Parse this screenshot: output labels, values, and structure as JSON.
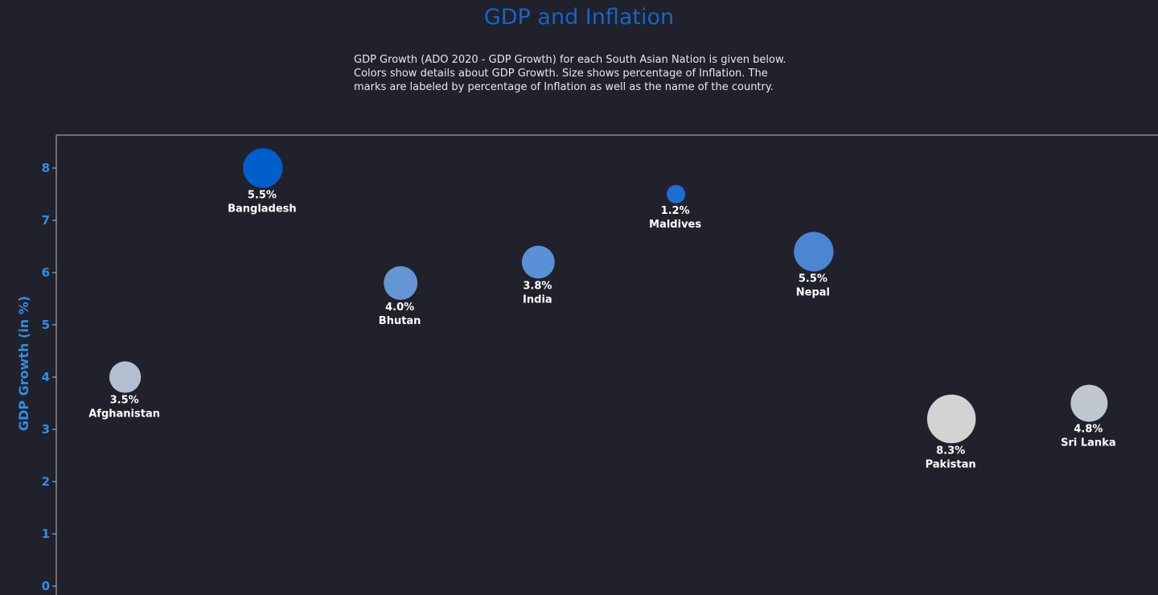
{
  "title": "GDP and Inflation",
  "description": [
    "GDP Growth (ADO 2020 - GDP Growth) for each South Asian Nation is given below.",
    "Colors show details about GDP Growth.  Size shows percentage of Inflation.  The",
    "marks are labeled by percentage of Inflation as well as the name of the country."
  ],
  "chart_data": {
    "type": "scatter",
    "ylabel": "GDP Growth (in %)",
    "xlabel": "",
    "ylim": [
      0,
      8.8
    ],
    "yticks": [
      0,
      1,
      2,
      3,
      4,
      5,
      6,
      7,
      8
    ],
    "grid": false,
    "points": [
      {
        "country": "Afghanistan",
        "gdp_growth": 4.0,
        "inflation": 3.5,
        "label": "3.5%",
        "color": "#b3bfd0"
      },
      {
        "country": "Bangladesh",
        "gdp_growth": 8.0,
        "inflation": 5.5,
        "label": "5.5%",
        "color": "#005fcc"
      },
      {
        "country": "Bhutan",
        "gdp_growth": 5.8,
        "inflation": 4.0,
        "label": "4.0%",
        "color": "#6496d4"
      },
      {
        "country": "India",
        "gdp_growth": 6.2,
        "inflation": 3.8,
        "label": "3.8%",
        "color": "#5a90d6"
      },
      {
        "country": "Maldives",
        "gdp_growth": 7.5,
        "inflation": 1.2,
        "label": "1.2%",
        "color": "#1c6fd2"
      },
      {
        "country": "Nepal",
        "gdp_growth": 6.4,
        "inflation": 5.5,
        "label": "5.5%",
        "color": "#4a86d2"
      },
      {
        "country": "Pakistan",
        "gdp_growth": 3.2,
        "inflation": 8.3,
        "label": "8.3%",
        "color": "#d3d3d3"
      },
      {
        "country": "Sri Lanka",
        "gdp_growth": 3.5,
        "inflation": 4.8,
        "label": "4.8%",
        "color": "#c0c6cf"
      }
    ]
  }
}
